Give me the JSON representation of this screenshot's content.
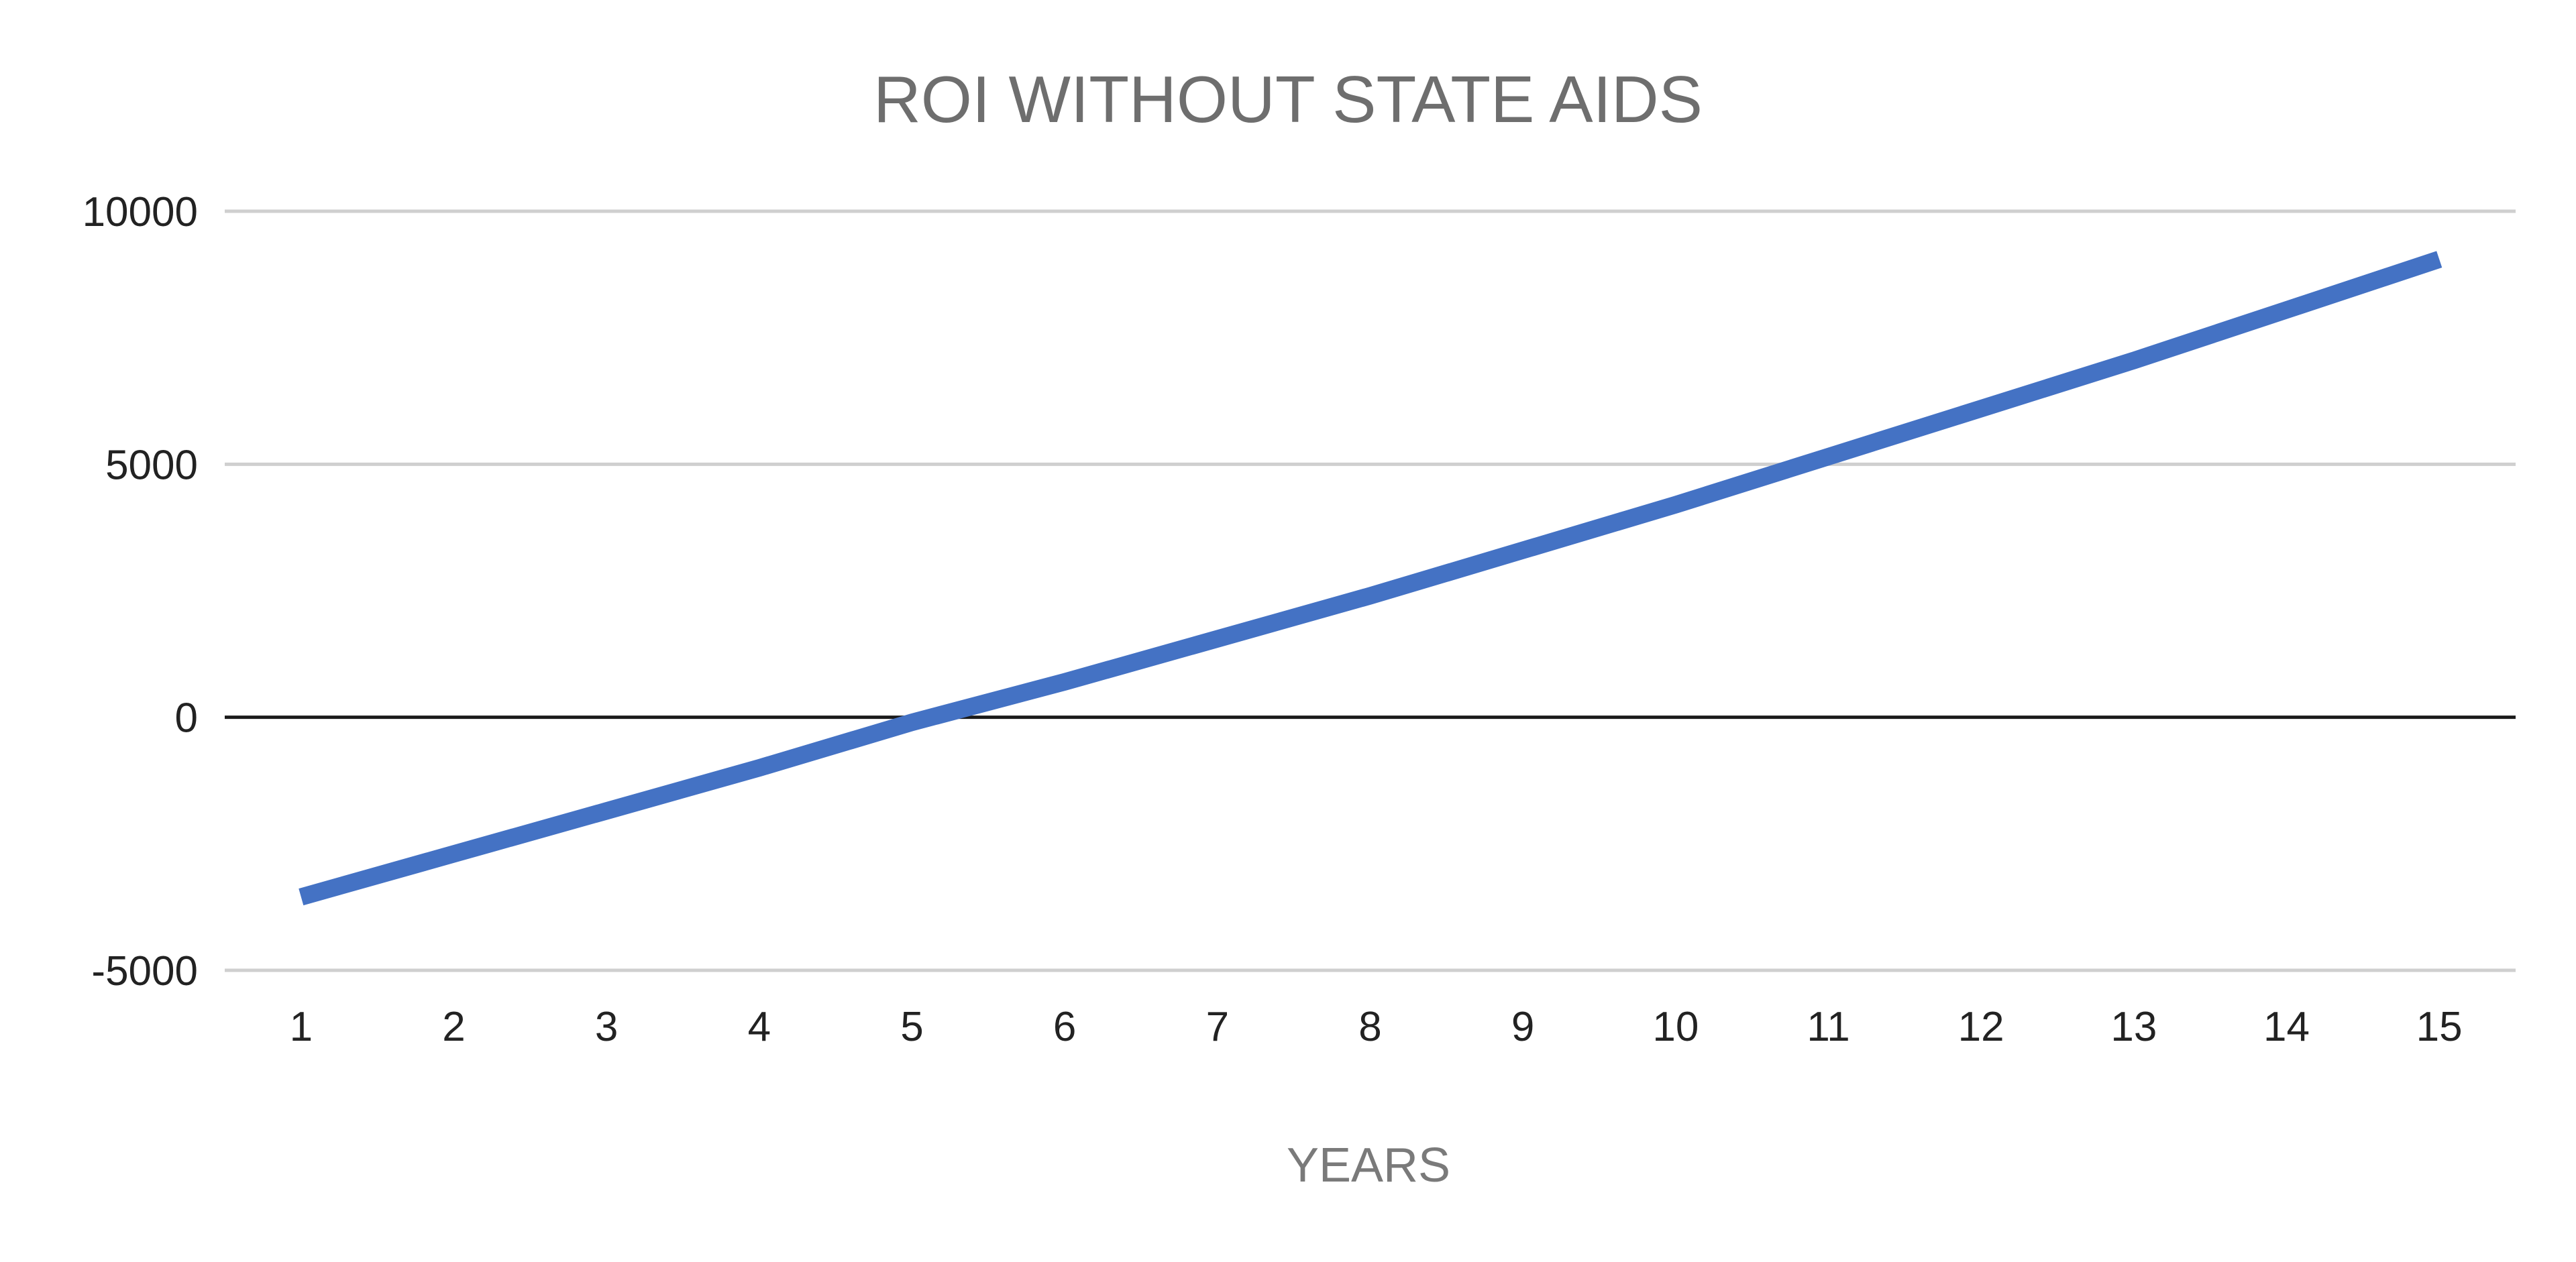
{
  "chart_data": {
    "type": "line",
    "title": "ROI WITHOUT STATE AIDS",
    "xlabel": "YEARS",
    "ylabel": "",
    "categories": [
      "1",
      "2",
      "3",
      "4",
      "5",
      "6",
      "7",
      "8",
      "9",
      "10",
      "11",
      "12",
      "13",
      "14",
      "15"
    ],
    "series": [
      {
        "values": [
          -3550,
          -2700,
          -1850,
          -1000,
          -100,
          700,
          1550,
          2400,
          3300,
          4200,
          5150,
          6100,
          7050,
          8050,
          9050
        ],
        "color": "#4472C4"
      }
    ],
    "yticks": [
      -5000,
      0,
      5000,
      10000
    ],
    "ytick_labels": [
      "-5000",
      "0",
      "5000",
      "10000"
    ],
    "ylim": [
      -5000,
      10000
    ],
    "grid": true,
    "legend": "none"
  }
}
